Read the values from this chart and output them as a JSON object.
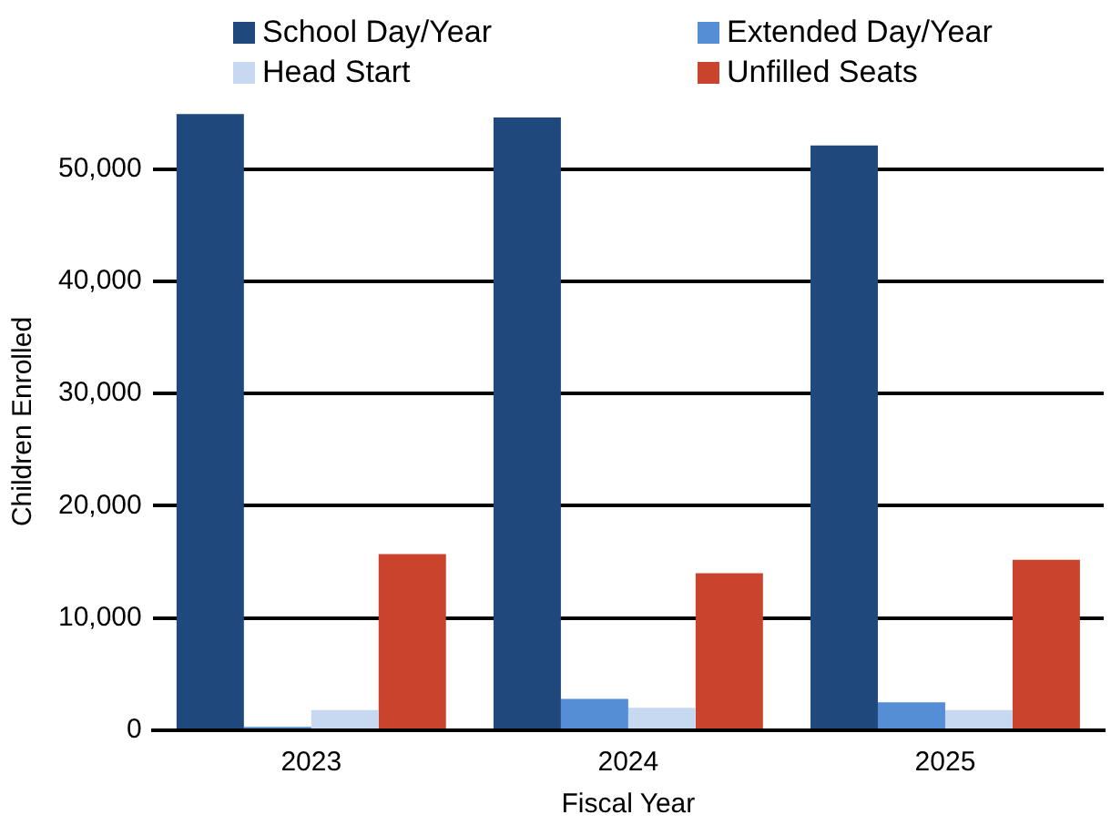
{
  "chart_data": {
    "type": "bar",
    "xlabel": "Fiscal Year",
    "ylabel": "Children Enrolled",
    "categories": [
      "2023",
      "2024",
      "2025"
    ],
    "series": [
      {
        "name": "School Day/Year",
        "color": "#1f497d",
        "values": [
          54900,
          54600,
          52100
        ]
      },
      {
        "name": "Extended Day/Year",
        "color": "#558ed5",
        "values": [
          300,
          2800,
          2500
        ]
      },
      {
        "name": "Head Start",
        "color": "#c6d9f1",
        "values": [
          1800,
          2000,
          1800
        ]
      },
      {
        "name": "Unfilled Seats",
        "color": "#c9432d",
        "values": [
          15700,
          14000,
          15200
        ]
      }
    ],
    "ylim": [
      0,
      55000
    ],
    "yticks": [
      0,
      {
        "value": 10000,
        "label": "10,000"
      },
      {
        "value": 20000,
        "label": "20,000"
      },
      {
        "value": 30000,
        "label": "30,000"
      },
      {
        "value": 40000,
        "label": "40,000"
      },
      {
        "value": 50000,
        "label": "50,000"
      }
    ],
    "grid": "y",
    "legend": "top"
  }
}
